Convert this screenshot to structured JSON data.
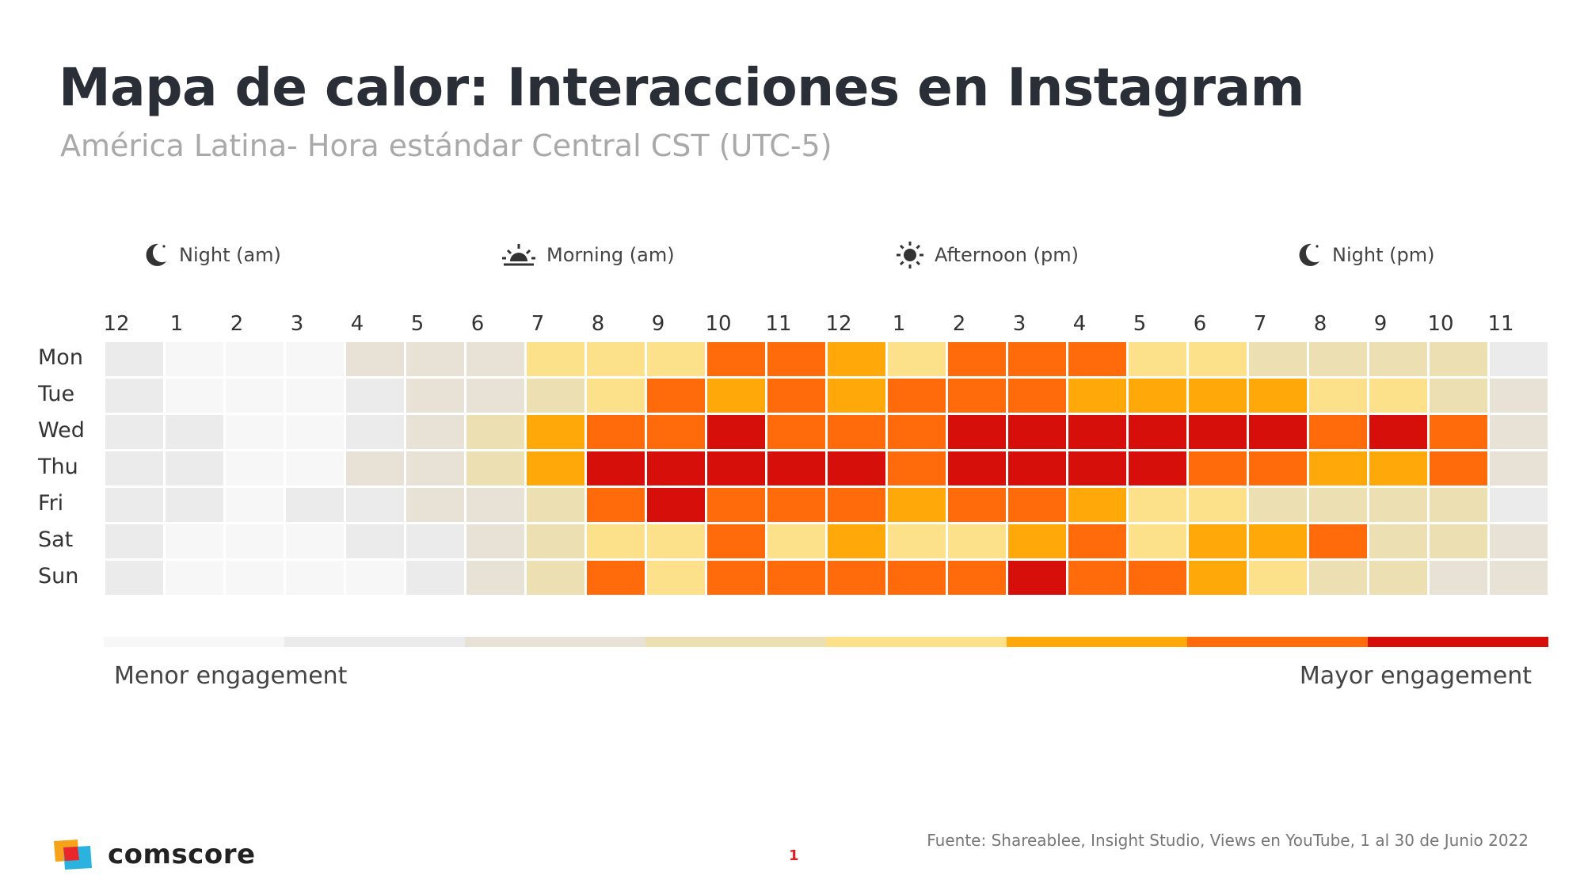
{
  "title": "Mapa de calor: Interacciones en Instagram",
  "subtitle": "América Latina- Hora estándar Central CST (UTC-5)",
  "periods": [
    {
      "label": "Night (am)",
      "icon": "moon-icon"
    },
    {
      "label": "Morning (am)",
      "icon": "sunrise-icon"
    },
    {
      "label": "Afternoon (pm)",
      "icon": "sun-icon"
    },
    {
      "label": "Night (pm)",
      "icon": "moon-icon"
    }
  ],
  "legend": {
    "low_label": "Menor engagement",
    "high_label": "Mayor engagement"
  },
  "source": "Fuente: Shareablee, Insight Studio, Views en YouTube, 1 al 30 de Junio 2022",
  "page_number": "1",
  "logo": {
    "text": "comscore"
  },
  "chart_data": {
    "type": "heatmap",
    "x": [
      "12",
      "1",
      "2",
      "3",
      "4",
      "5",
      "6",
      "7",
      "8",
      "9",
      "10",
      "11",
      "12",
      "1",
      "2",
      "3",
      "4",
      "5",
      "6",
      "7",
      "8",
      "9",
      "10",
      "11"
    ],
    "y": [
      "Mon",
      "Tue",
      "Wed",
      "Thu",
      "Fri",
      "Sat",
      "Sun"
    ],
    "scale_colors": [
      "#f7f7f7",
      "#ebebeb",
      "#e8e2d6",
      "#ece0b3",
      "#fde08a",
      "#ffa80a",
      "#ff6a0a",
      "#d60f0a"
    ],
    "levels": [
      [
        1,
        0,
        0,
        0,
        2,
        2,
        2,
        4,
        4,
        4,
        6,
        6,
        5,
        4,
        6,
        6,
        6,
        4,
        4,
        3,
        3,
        3,
        3,
        1
      ],
      [
        1,
        0,
        0,
        0,
        1,
        2,
        2,
        3,
        4,
        6,
        5,
        6,
        5,
        6,
        6,
        6,
        5,
        5,
        5,
        5,
        4,
        4,
        3,
        2
      ],
      [
        1,
        1,
        0,
        0,
        1,
        2,
        3,
        5,
        6,
        6,
        7,
        6,
        6,
        6,
        7,
        7,
        7,
        7,
        7,
        7,
        6,
        7,
        6,
        2
      ],
      [
        1,
        1,
        0,
        0,
        2,
        2,
        3,
        5,
        7,
        7,
        7,
        7,
        7,
        6,
        7,
        7,
        7,
        7,
        6,
        6,
        5,
        5,
        6,
        2
      ],
      [
        1,
        1,
        0,
        1,
        1,
        2,
        2,
        3,
        6,
        7,
        6,
        6,
        6,
        5,
        6,
        6,
        5,
        4,
        4,
        3,
        3,
        3,
        3,
        1
      ],
      [
        1,
        0,
        0,
        0,
        1,
        1,
        2,
        3,
        4,
        4,
        6,
        4,
        5,
        4,
        4,
        5,
        6,
        4,
        5,
        5,
        6,
        3,
        3,
        2
      ],
      [
        1,
        0,
        0,
        0,
        0,
        1,
        2,
        3,
        6,
        4,
        6,
        6,
        6,
        6,
        6,
        7,
        6,
        6,
        5,
        4,
        3,
        3,
        2,
        2
      ]
    ]
  }
}
